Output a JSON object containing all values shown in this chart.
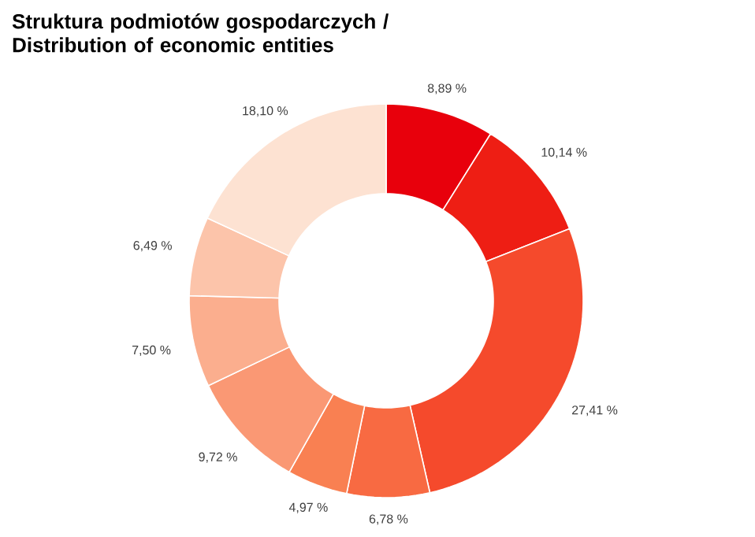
{
  "chart_data": {
    "type": "donut",
    "title": "Struktura podmiotów gospodarczych / Distribution of economic entities",
    "categories": [
      null,
      null,
      null,
      null,
      null,
      null,
      null,
      null,
      null
    ],
    "values": [
      8.89,
      10.14,
      27.41,
      6.78,
      4.97,
      9.72,
      7.5,
      6.49,
      18.1
    ],
    "value_labels": [
      "8,89 %",
      "10,14 %",
      "27,41 %",
      "6,78 %",
      "4,97 %",
      "9,72 %",
      "7,50 %",
      "6,49 %",
      "18,10 %"
    ],
    "colors": [
      "#e8000c",
      "#ee1e14",
      "#f54a2c",
      "#f86a42",
      "#f98052",
      "#fa9874",
      "#fbae8e",
      "#fcc4aa",
      "#fde2d2"
    ]
  }
}
